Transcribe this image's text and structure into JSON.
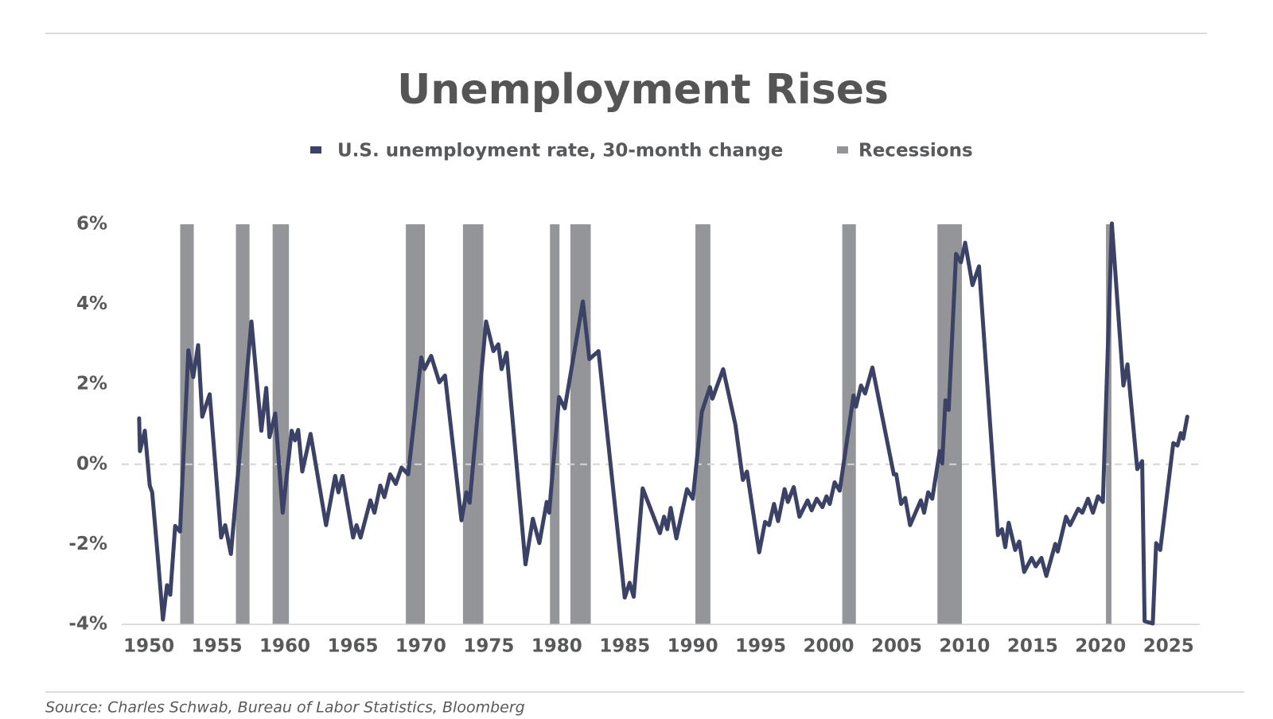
{
  "chart_data": {
    "type": "line",
    "title": "Unemployment Rises",
    "source": "Source: Charles Schwab, Bureau of Labor Statistics, Bloomberg",
    "x": [
      1949.28,
      1949.34,
      1949.7,
      1950.06,
      1950.24,
      1950.66,
      1951.03,
      1951.33,
      1951.57,
      1951.93,
      1952.29,
      1952.9,
      1953.26,
      1953.62,
      1953.92,
      1954.47,
      1955.31,
      1955.61,
      1956.03,
      1957.54,
      1958.27,
      1958.63,
      1958.87,
      1959.29,
      1959.84,
      1960.5,
      1960.74,
      1960.98,
      1961.28,
      1961.89,
      1963.03,
      1963.7,
      1963.94,
      1964.24,
      1965.02,
      1965.27,
      1965.57,
      1966.29,
      1966.59,
      1967.02,
      1967.32,
      1967.74,
      1968.16,
      1968.58,
      1969.07,
      1970.03,
      1970.27,
      1970.76,
      1971.36,
      1971.78,
      1972.99,
      1973.35,
      1973.59,
      1974.8,
      1975.34,
      1975.7,
      1975.94,
      1976.31,
      1977.7,
      1978.24,
      1978.72,
      1979.26,
      1979.44,
      1980.17,
      1980.59,
      1981.92,
      1982.4,
      1983.07,
      1985.0,
      1985.36,
      1985.66,
      1986.32,
      1987.59,
      1987.89,
      1988.13,
      1988.38,
      1988.8,
      1989.58,
      1990.01,
      1990.67,
      1991.27,
      1991.45,
      1992.24,
      1993.14,
      1993.69,
      1993.99,
      1994.89,
      1995.32,
      1995.62,
      1995.98,
      1996.28,
      1996.76,
      1997.0,
      1997.43,
      1997.85,
      1998.45,
      1998.75,
      1999.12,
      1999.54,
      1999.84,
      2000.08,
      2000.44,
      2000.81,
      2001.83,
      2002.01,
      2002.38,
      2002.68,
      2003.22,
      2004.79,
      2004.97,
      2005.33,
      2005.63,
      2005.99,
      2006.78,
      2007.02,
      2007.32,
      2007.62,
      2008.17,
      2008.35,
      2008.59,
      2008.83,
      2009.37,
      2009.73,
      2010.04,
      2010.58,
      2011.06,
      2012.45,
      2012.75,
      2012.99,
      2013.24,
      2013.72,
      2014.02,
      2014.38,
      2014.93,
      2015.23,
      2015.65,
      2016.01,
      2016.67,
      2016.85,
      2017.46,
      2017.76,
      2018.36,
      2018.66,
      2019.08,
      2019.44,
      2019.81,
      2020.17,
      2020.83,
      2021.68,
      2021.98,
      2022.7,
      2023.06,
      2023.24,
      2023.84,
      2024.09,
      2024.39,
      2025.35,
      2025.66,
      2025.9,
      2026.08,
      2026.38
    ],
    "series": [
      {
        "name": "U.S. unemployment rate, 30-month change",
        "color": "#3b4266",
        "values": [
          1.15,
          0.33,
          0.84,
          -0.53,
          -0.7,
          -2.34,
          -3.88,
          -3.02,
          -3.26,
          -1.54,
          -1.68,
          2.85,
          2.18,
          2.98,
          1.19,
          1.75,
          -1.83,
          -1.52,
          -2.24,
          3.57,
          0.84,
          1.91,
          0.68,
          1.27,
          -1.21,
          0.84,
          0.6,
          0.86,
          -0.18,
          0.76,
          -1.52,
          -0.29,
          -0.7,
          -0.29,
          -1.83,
          -1.52,
          -1.83,
          -0.9,
          -1.21,
          -0.53,
          -0.82,
          -0.25,
          -0.49,
          -0.08,
          -0.25,
          2.67,
          2.38,
          2.71,
          2.05,
          2.22,
          -1.4,
          -0.7,
          -0.96,
          3.57,
          2.83,
          3.0,
          2.38,
          2.79,
          -2.5,
          -1.36,
          -1.97,
          -0.94,
          -1.21,
          1.68,
          1.4,
          4.07,
          2.63,
          2.83,
          -3.33,
          -2.96,
          -3.31,
          -0.6,
          -1.72,
          -1.31,
          -1.62,
          -1.09,
          -1.85,
          -0.62,
          -0.86,
          1.31,
          1.93,
          1.64,
          2.38,
          0.99,
          -0.39,
          -0.18,
          -2.2,
          -1.44,
          -1.52,
          -0.99,
          -1.42,
          -0.62,
          -0.94,
          -0.57,
          -1.31,
          -0.9,
          -1.15,
          -0.86,
          -1.07,
          -0.8,
          -0.99,
          -0.45,
          -0.66,
          1.72,
          1.44,
          1.97,
          1.77,
          2.42,
          -0.25,
          -0.25,
          -0.99,
          -0.84,
          -1.52,
          -0.9,
          -1.21,
          -0.7,
          -0.86,
          0.33,
          0.02,
          1.6,
          1.36,
          5.26,
          5.05,
          5.54,
          4.48,
          4.95,
          -1.77,
          -1.62,
          -2.07,
          -1.46,
          -2.14,
          -1.93,
          -2.69,
          -2.34,
          -2.55,
          -2.34,
          -2.79,
          -1.99,
          -2.18,
          -1.31,
          -1.52,
          -1.11,
          -1.21,
          -0.86,
          -1.21,
          -0.8,
          -0.94,
          6.02,
          1.97,
          2.5,
          -0.12,
          0.08,
          -3.92,
          -3.98,
          -1.97,
          -2.14,
          0.53,
          0.47,
          0.78,
          0.64,
          1.19
        ]
      }
    ],
    "recessions": {
      "name": "Recessions",
      "color": "#939598",
      "spans": [
        [
          1952.3,
          1953.3
        ],
        [
          1956.4,
          1957.4
        ],
        [
          1959.1,
          1960.3
        ],
        [
          1968.9,
          1970.3
        ],
        [
          1973.1,
          1974.6
        ],
        [
          1979.5,
          1980.2
        ],
        [
          1981.0,
          1982.5
        ],
        [
          1990.2,
          1991.3
        ],
        [
          2001.0,
          2002.0
        ],
        [
          2008.0,
          2009.8
        ],
        [
          2020.4,
          2020.8
        ]
      ]
    },
    "xlim": [
      1948,
      2027.3
    ],
    "xticks": [
      1950,
      1955,
      1960,
      1965,
      1970,
      1975,
      1980,
      1985,
      1990,
      1995,
      2000,
      2005,
      2010,
      2015,
      2020,
      2025
    ],
    "ylim": [
      -4,
      6
    ],
    "yticks": [
      {
        "value": -4,
        "label": "-4%"
      },
      {
        "value": -2,
        "label": "-2%"
      },
      {
        "value": 0,
        "label": "0%"
      },
      {
        "value": 2,
        "label": "2%"
      },
      {
        "value": 4,
        "label": "4%"
      },
      {
        "value": 6,
        "label": "6%"
      }
    ]
  }
}
